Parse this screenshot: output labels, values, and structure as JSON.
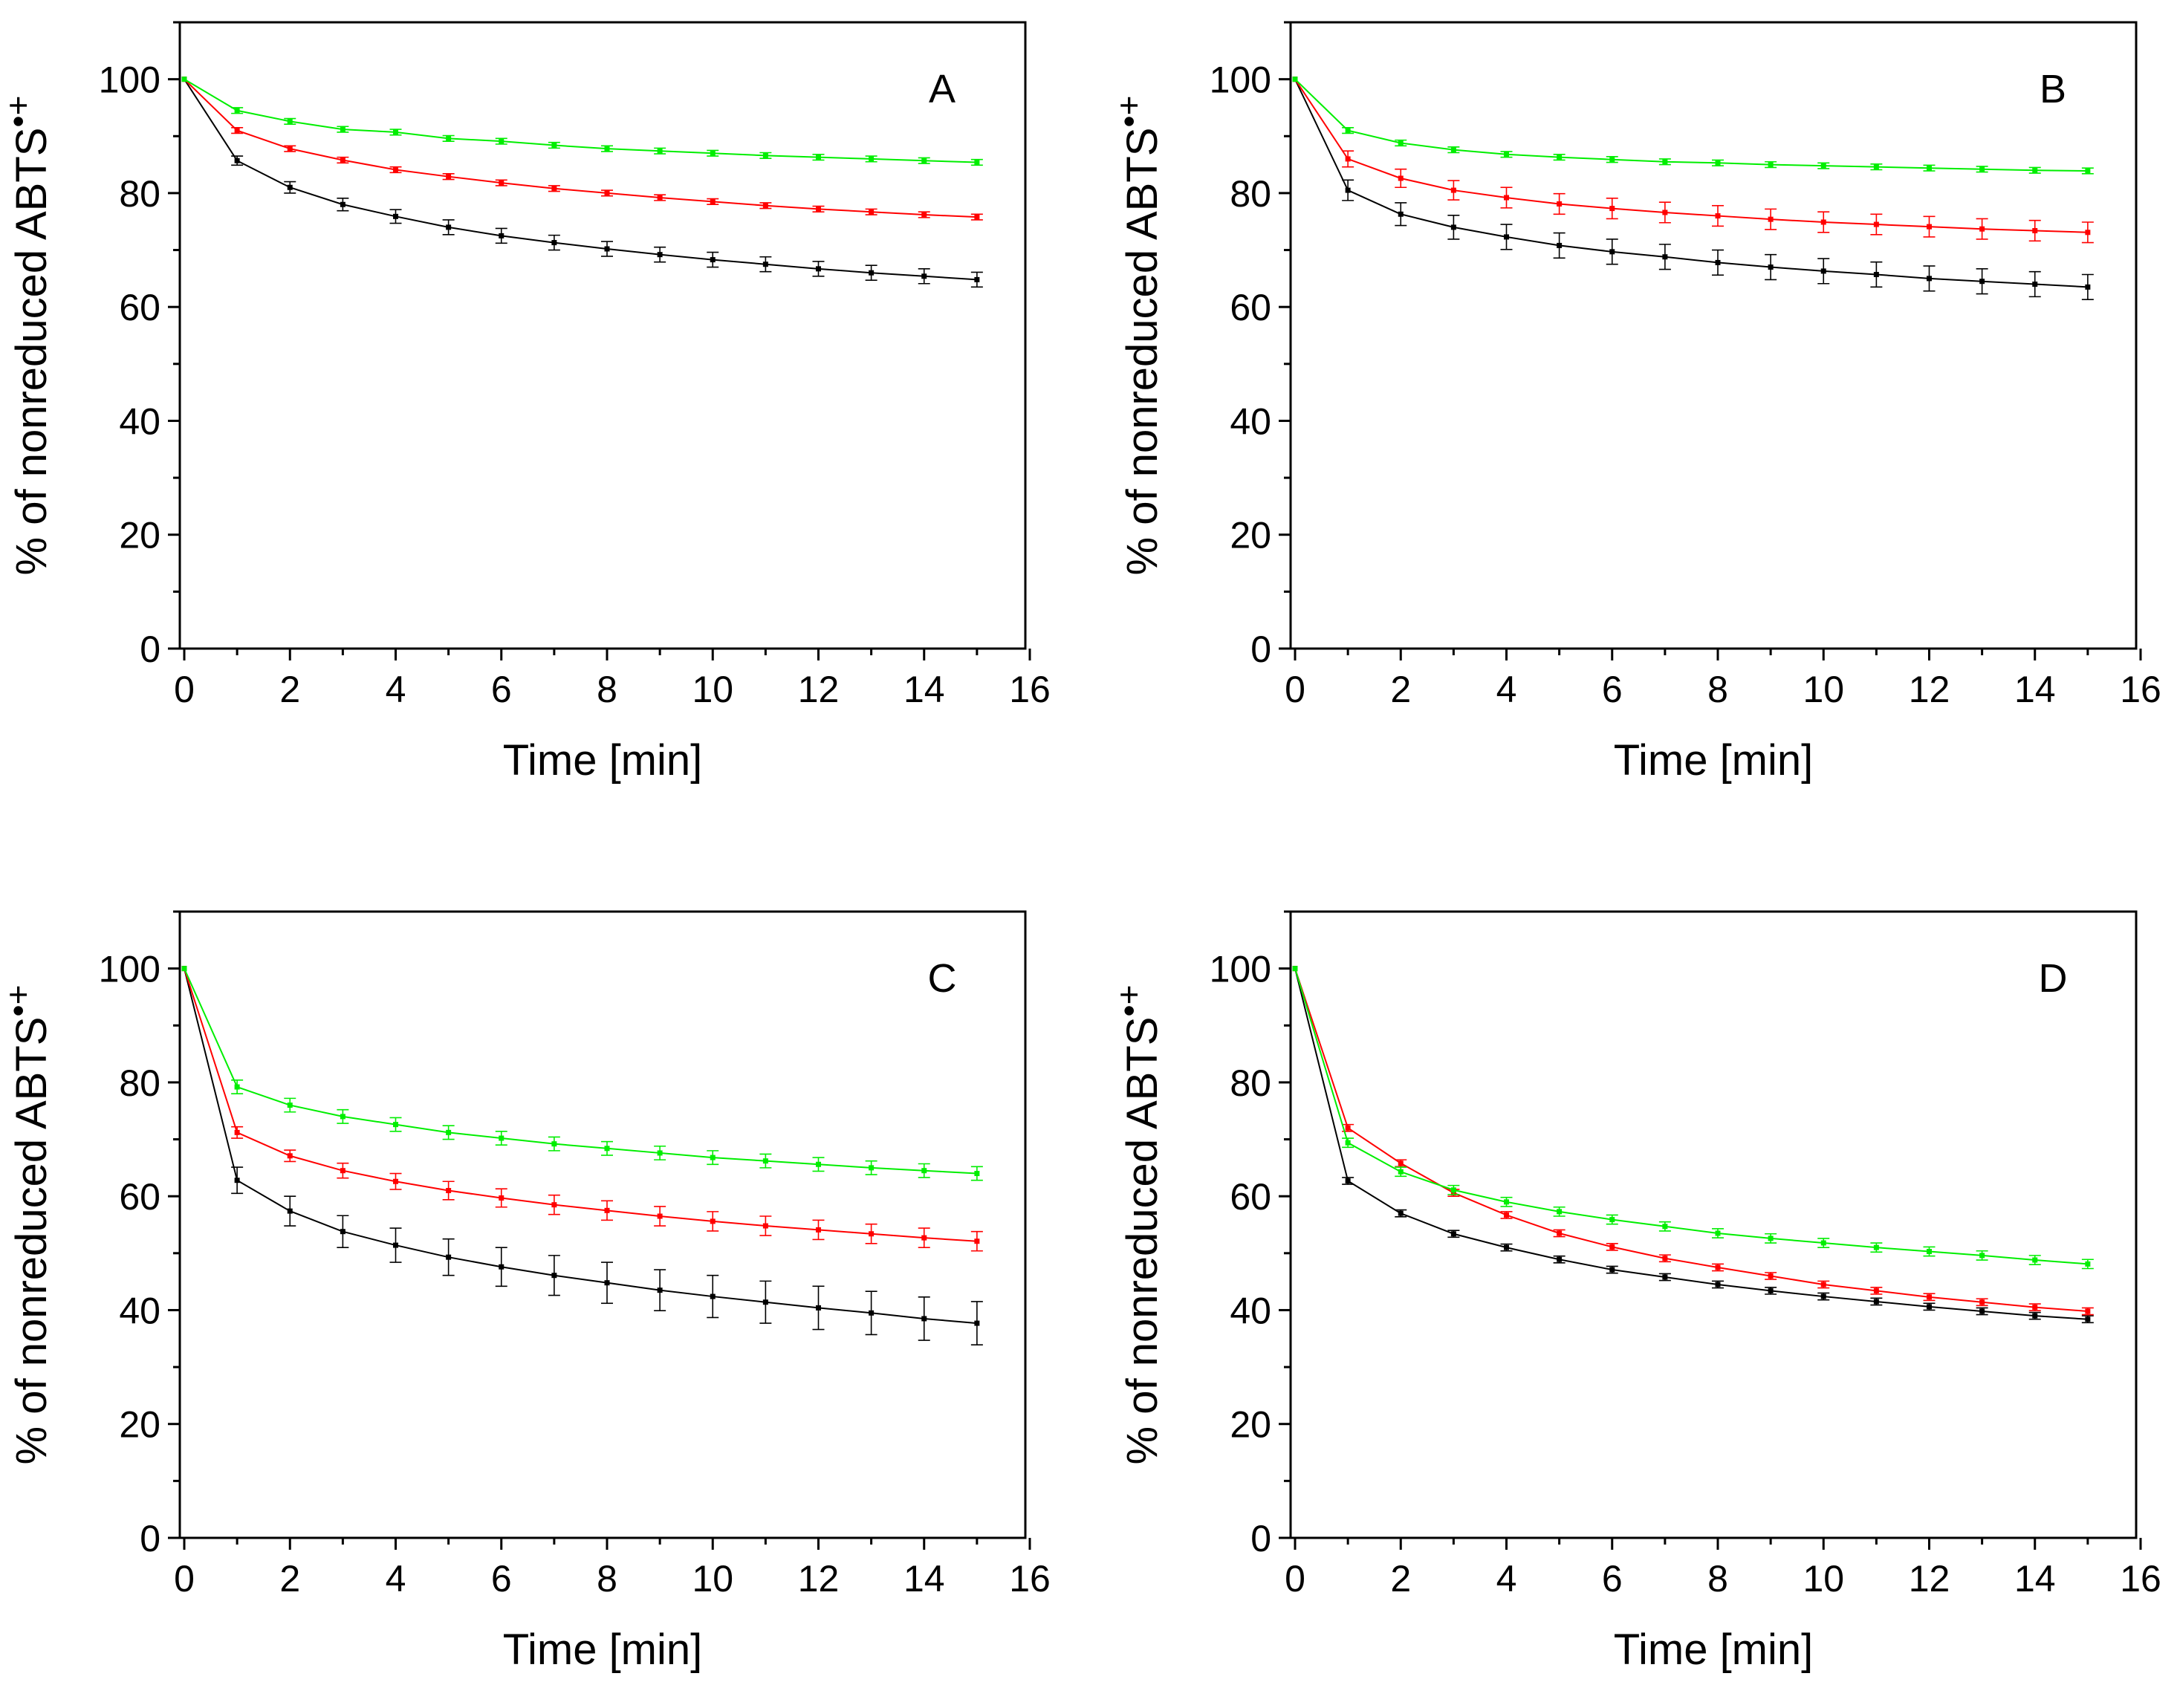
{
  "series_colors": {
    "control": "#000000",
    "series2": "#ff0000",
    "series3": "#00ee00"
  },
  "chart_data": [
    {
      "type": "line",
      "panel_label": "A",
      "xlabel": "Time [min]",
      "ylabel": "% of nonreduced ABTS",
      "ylabel_superscript": "•+",
      "xlim": [
        0,
        16
      ],
      "ylim": [
        0,
        110
      ],
      "xticks": [
        0,
        2,
        4,
        6,
        8,
        10,
        12,
        14,
        16
      ],
      "yticks": [
        0,
        20,
        40,
        60,
        80,
        100
      ],
      "x": [
        0,
        1,
        2,
        3,
        4,
        5,
        6,
        7,
        8,
        9,
        10,
        11,
        12,
        13,
        14,
        15
      ],
      "series": [
        {
          "color": "#000000",
          "values": [
            100,
            85.7,
            81.0,
            78.0,
            75.9,
            74.0,
            72.5,
            71.3,
            70.2,
            69.2,
            68.3,
            67.5,
            66.7,
            66.0,
            65.4,
            64.8
          ],
          "errors": [
            0,
            0.8,
            1.0,
            1.1,
            1.2,
            1.3,
            1.3,
            1.3,
            1.3,
            1.3,
            1.3,
            1.3,
            1.3,
            1.3,
            1.3,
            1.3
          ]
        },
        {
          "color": "#ff0000",
          "values": [
            100,
            91.0,
            87.8,
            85.8,
            84.1,
            82.9,
            81.8,
            80.8,
            80.0,
            79.2,
            78.5,
            77.8,
            77.2,
            76.7,
            76.2,
            75.8
          ],
          "errors": [
            0,
            0.5,
            0.5,
            0.5,
            0.5,
            0.5,
            0.5,
            0.5,
            0.5,
            0.5,
            0.5,
            0.5,
            0.5,
            0.5,
            0.5,
            0.5
          ]
        },
        {
          "color": "#00ee00",
          "values": [
            100,
            94.5,
            92.6,
            91.2,
            90.7,
            89.6,
            89.1,
            88.4,
            87.8,
            87.4,
            87.0,
            86.6,
            86.3,
            86.0,
            85.7,
            85.4
          ],
          "errors": [
            0,
            0.5,
            0.5,
            0.5,
            0.5,
            0.5,
            0.5,
            0.5,
            0.5,
            0.5,
            0.5,
            0.5,
            0.5,
            0.5,
            0.5,
            0.5
          ]
        }
      ]
    },
    {
      "type": "line",
      "panel_label": "B",
      "xlabel": "Time [min]",
      "ylabel": "% of nonreduced ABTS",
      "ylabel_superscript": "•+",
      "xlim": [
        0,
        16
      ],
      "ylim": [
        0,
        110
      ],
      "xticks": [
        0,
        2,
        4,
        6,
        8,
        10,
        12,
        14,
        16
      ],
      "yticks": [
        0,
        20,
        40,
        60,
        80,
        100
      ],
      "x": [
        0,
        1,
        2,
        3,
        4,
        5,
        6,
        7,
        8,
        9,
        10,
        11,
        12,
        13,
        14,
        15
      ],
      "series": [
        {
          "color": "#000000",
          "values": [
            100,
            80.5,
            76.3,
            74.0,
            72.3,
            70.8,
            69.7,
            68.8,
            67.8,
            67.0,
            66.3,
            65.7,
            65.0,
            64.5,
            64.0,
            63.5
          ],
          "errors": [
            0,
            1.8,
            2.0,
            2.1,
            2.2,
            2.2,
            2.2,
            2.2,
            2.2,
            2.2,
            2.2,
            2.2,
            2.2,
            2.2,
            2.2,
            2.2
          ]
        },
        {
          "color": "#ff0000",
          "values": [
            100,
            86.0,
            82.6,
            80.5,
            79.2,
            78.1,
            77.3,
            76.6,
            76.0,
            75.4,
            74.9,
            74.5,
            74.1,
            73.7,
            73.4,
            73.1
          ],
          "errors": [
            0,
            1.4,
            1.6,
            1.7,
            1.8,
            1.8,
            1.8,
            1.8,
            1.8,
            1.8,
            1.8,
            1.8,
            1.8,
            1.8,
            1.8,
            1.8
          ]
        },
        {
          "color": "#00ee00",
          "values": [
            100,
            91.0,
            88.8,
            87.6,
            86.8,
            86.3,
            85.9,
            85.5,
            85.3,
            85.0,
            84.8,
            84.6,
            84.4,
            84.2,
            84.0,
            83.9
          ],
          "errors": [
            0,
            0.5,
            0.5,
            0.5,
            0.5,
            0.5,
            0.5,
            0.5,
            0.5,
            0.5,
            0.5,
            0.5,
            0.5,
            0.5,
            0.5,
            0.5
          ]
        }
      ]
    },
    {
      "type": "line",
      "panel_label": "C",
      "xlabel": "Time [min]",
      "ylabel": "% of nonreduced ABTS",
      "ylabel_superscript": "•+",
      "xlim": [
        0,
        16
      ],
      "ylim": [
        0,
        110
      ],
      "xticks": [
        0,
        2,
        4,
        6,
        8,
        10,
        12,
        14,
        16
      ],
      "yticks": [
        0,
        20,
        40,
        60,
        80,
        100
      ],
      "x": [
        0,
        1,
        2,
        3,
        4,
        5,
        6,
        7,
        8,
        9,
        10,
        11,
        12,
        13,
        14,
        15
      ],
      "series": [
        {
          "color": "#000000",
          "values": [
            100,
            62.8,
            57.4,
            53.8,
            51.4,
            49.3,
            47.6,
            46.1,
            44.8,
            43.5,
            42.4,
            41.4,
            40.4,
            39.5,
            38.5,
            37.7
          ],
          "errors": [
            0,
            2.3,
            2.6,
            2.8,
            3.0,
            3.2,
            3.4,
            3.5,
            3.6,
            3.6,
            3.7,
            3.7,
            3.8,
            3.8,
            3.8,
            3.8
          ]
        },
        {
          "color": "#ff0000",
          "values": [
            100,
            71.2,
            67.1,
            64.5,
            62.6,
            61.0,
            59.7,
            58.5,
            57.5,
            56.5,
            55.6,
            54.8,
            54.1,
            53.4,
            52.7,
            52.1
          ],
          "errors": [
            0,
            1.0,
            1.0,
            1.3,
            1.4,
            1.6,
            1.6,
            1.7,
            1.7,
            1.7,
            1.7,
            1.7,
            1.7,
            1.7,
            1.7,
            1.7
          ]
        },
        {
          "color": "#00ee00",
          "values": [
            100,
            79.2,
            76.0,
            74.0,
            72.6,
            71.2,
            70.2,
            69.2,
            68.4,
            67.6,
            66.8,
            66.2,
            65.6,
            65.0,
            64.5,
            64.0
          ],
          "errors": [
            0,
            1.2,
            1.2,
            1.2,
            1.2,
            1.2,
            1.2,
            1.2,
            1.2,
            1.2,
            1.2,
            1.2,
            1.2,
            1.2,
            1.2,
            1.2
          ]
        }
      ]
    },
    {
      "type": "line",
      "panel_label": "D",
      "xlabel": "Time [min]",
      "ylabel": "% of nonreduced ABTS",
      "ylabel_superscript": "•+",
      "xlim": [
        0,
        16
      ],
      "ylim": [
        0,
        110
      ],
      "xticks": [
        0,
        2,
        4,
        6,
        8,
        10,
        12,
        14,
        16
      ],
      "yticks": [
        0,
        20,
        40,
        60,
        80,
        100
      ],
      "x": [
        0,
        1,
        2,
        3,
        4,
        5,
        6,
        7,
        8,
        9,
        10,
        11,
        12,
        13,
        14,
        15
      ],
      "series": [
        {
          "color": "#000000",
          "values": [
            100,
            62.7,
            57.0,
            53.4,
            51.0,
            48.9,
            47.1,
            45.8,
            44.5,
            43.4,
            42.4,
            41.5,
            40.6,
            39.8,
            39.0,
            38.4
          ],
          "errors": [
            0,
            0.6,
            0.6,
            0.6,
            0.6,
            0.6,
            0.6,
            0.6,
            0.6,
            0.6,
            0.6,
            0.6,
            0.6,
            0.6,
            0.6,
            0.6
          ]
        },
        {
          "color": "#ff0000",
          "values": [
            100,
            72.0,
            65.8,
            60.6,
            56.7,
            53.5,
            51.1,
            49.1,
            47.5,
            46.0,
            44.5,
            43.4,
            42.3,
            41.4,
            40.5,
            39.8
          ],
          "errors": [
            0,
            0.6,
            0.6,
            0.6,
            0.6,
            0.6,
            0.6,
            0.6,
            0.6,
            0.6,
            0.6,
            0.6,
            0.6,
            0.6,
            0.6,
            0.6
          ]
        },
        {
          "color": "#00ee00",
          "values": [
            100,
            69.4,
            64.3,
            61.1,
            59.0,
            57.3,
            55.9,
            54.7,
            53.5,
            52.6,
            51.8,
            51.0,
            50.3,
            49.6,
            48.8,
            48.1
          ],
          "errors": [
            0,
            0.8,
            0.8,
            0.8,
            0.8,
            0.8,
            0.8,
            0.8,
            0.8,
            0.8,
            0.8,
            0.8,
            0.8,
            0.8,
            0.8,
            0.8
          ]
        }
      ]
    }
  ]
}
